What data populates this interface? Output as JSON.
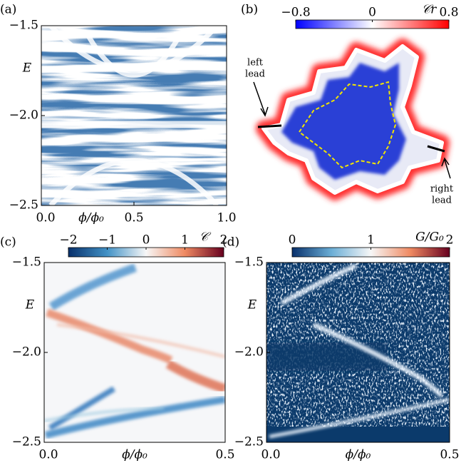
{
  "chart_data": [
    {
      "type": "heatmap",
      "panel_label": "(a)",
      "y_label": "E",
      "x_label": "ϕ/ϕ₀",
      "xlim": [
        0,
        1
      ],
      "ylim": [
        -2.5,
        -1.5
      ],
      "xticks": [
        {
          "value": 0,
          "label": "0.0"
        },
        0.5,
        {
          "value": 1,
          "label": "1.0"
        }
      ],
      "yticks": [
        {
          "value": -2.5,
          "label": "−2.5"
        },
        {
          "value": -2,
          "label": "−2.0"
        },
        {
          "value": -1.5,
          "label": "−1.5"
        }
      ]
    },
    {
      "type": "map",
      "panel_label": "(b)",
      "colorbar": {
        "label": "𝒞r",
        "lim": [
          -0.8,
          0.8
        ],
        "ticks": [
          {
            "value": -0.8,
            "label": "−0.8"
          },
          0,
          0.8
        ],
        "colors": [
          "#0000ff",
          "#ffffff",
          "#ff0000"
        ]
      },
      "annotations": [
        [
          "left",
          "lead"
        ],
        [
          "right",
          "lead"
        ]
      ]
    },
    {
      "type": "heatmap",
      "panel_label": "(c)",
      "y_label": "E",
      "x_label": "ϕ/ϕ₀",
      "xlim": [
        0,
        0.5
      ],
      "ylim": [
        -2.5,
        -1.5
      ],
      "xticks": [
        {
          "value": 0,
          "label": "0.0"
        },
        0.5
      ],
      "yticks": [
        {
          "value": -2.5,
          "label": "−2.5"
        },
        {
          "value": -2,
          "label": "−2.0"
        },
        {
          "value": -1.5,
          "label": "−1.5"
        }
      ],
      "colorbar": {
        "label": "𝒞",
        "lim": [
          -2,
          2
        ],
        "ticks": [
          {
            "value": -2,
            "label": "−2"
          },
          {
            "value": -1,
            "label": "−1"
          },
          0,
          1,
          2
        ],
        "colors": [
          "#08306b",
          "#4292c6",
          "#f7f7f7",
          "#ef8a62",
          "#67001f"
        ]
      }
    },
    {
      "type": "heatmap",
      "panel_label": "(d)",
      "y_label": "E",
      "x_label": "ϕ/ϕ₀",
      "xlim": [
        0,
        0.5
      ],
      "ylim": [
        -2.5,
        -1.5
      ],
      "xticks": [
        {
          "value": 0,
          "label": "0.0"
        },
        0.5
      ],
      "yticks": [
        {
          "value": -2.5,
          "label": "−2.5"
        },
        {
          "value": -2,
          "label": "−2.0"
        },
        {
          "value": -1.5,
          "label": "−1.5"
        }
      ],
      "colorbar": {
        "label": "G/G₀",
        "lim": [
          0,
          2
        ],
        "ticks": [
          0,
          1,
          2
        ],
        "colors": [
          "#08306b",
          "#6baed6",
          "#f7f7f7",
          "#ef8a62",
          "#67001f"
        ]
      }
    }
  ]
}
